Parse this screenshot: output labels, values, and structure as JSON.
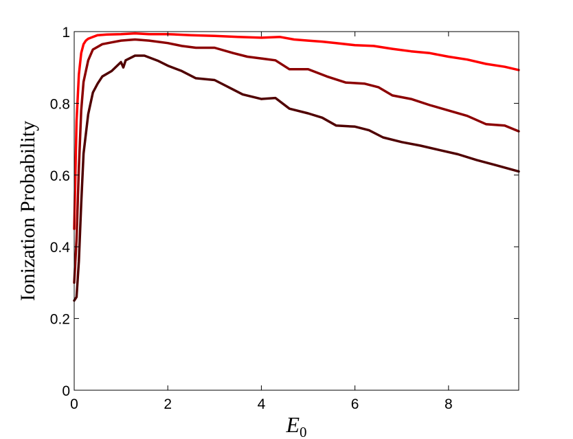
{
  "chart_data": {
    "type": "line",
    "title": "",
    "xlabel": "E",
    "xlabel_subscript": "0",
    "ylabel": "Ionization Probability",
    "xlim": [
      0,
      9.5
    ],
    "ylim": [
      0,
      1
    ],
    "xticks": [
      0,
      2,
      4,
      6,
      8
    ],
    "xtick_labels": [
      "0",
      "2",
      "4",
      "6",
      "8"
    ],
    "yticks": [
      0,
      0.2,
      0.4,
      0.6,
      0.8,
      1
    ],
    "ytick_labels": [
      "0",
      "0.2",
      "0.4",
      "0.6",
      "0.8",
      "1"
    ],
    "grid": false,
    "legend": "none",
    "series": [
      {
        "color": "#ff0000",
        "x": [
          0.0,
          0.05,
          0.1,
          0.15,
          0.2,
          0.25,
          0.3,
          0.4,
          0.5,
          0.7,
          1.0,
          1.3,
          1.6,
          2.0,
          2.5,
          3.0,
          3.5,
          4.0,
          4.4,
          4.7,
          5.0,
          5.3,
          5.6,
          6.0,
          6.4,
          6.8,
          7.2,
          7.6,
          8.0,
          8.4,
          8.8,
          9.2,
          9.5
        ],
        "y": [
          0.45,
          0.75,
          0.88,
          0.94,
          0.965,
          0.975,
          0.98,
          0.985,
          0.99,
          0.992,
          0.993,
          0.995,
          0.993,
          0.993,
          0.99,
          0.988,
          0.985,
          0.983,
          0.985,
          0.978,
          0.975,
          0.972,
          0.968,
          0.962,
          0.96,
          0.952,
          0.945,
          0.94,
          0.93,
          0.922,
          0.91,
          0.902,
          0.893
        ]
      },
      {
        "color": "#8c0000",
        "x": [
          0.0,
          0.05,
          0.1,
          0.15,
          0.2,
          0.3,
          0.4,
          0.6,
          0.8,
          1.0,
          1.3,
          1.6,
          2.0,
          2.3,
          2.6,
          3.0,
          3.4,
          3.7,
          4.0,
          4.3,
          4.6,
          5.0,
          5.4,
          5.8,
          6.2,
          6.5,
          6.8,
          7.2,
          7.6,
          8.0,
          8.4,
          8.8,
          9.2,
          9.5
        ],
        "y": [
          0.3,
          0.42,
          0.62,
          0.78,
          0.86,
          0.92,
          0.95,
          0.965,
          0.97,
          0.975,
          0.978,
          0.975,
          0.968,
          0.96,
          0.955,
          0.955,
          0.94,
          0.93,
          0.925,
          0.92,
          0.895,
          0.895,
          0.875,
          0.858,
          0.855,
          0.845,
          0.822,
          0.812,
          0.795,
          0.78,
          0.765,
          0.742,
          0.738,
          0.722
        ]
      },
      {
        "color": "#500000",
        "x": [
          0.0,
          0.05,
          0.1,
          0.15,
          0.2,
          0.3,
          0.4,
          0.5,
          0.6,
          0.8,
          1.0,
          1.05,
          1.1,
          1.3,
          1.5,
          1.8,
          2.0,
          2.3,
          2.6,
          3.0,
          3.3,
          3.6,
          4.0,
          4.3,
          4.6,
          5.0,
          5.3,
          5.6,
          6.0,
          6.3,
          6.6,
          7.0,
          7.4,
          7.8,
          8.2,
          8.6,
          9.0,
          9.5
        ],
        "y": [
          0.25,
          0.26,
          0.36,
          0.52,
          0.66,
          0.77,
          0.83,
          0.855,
          0.875,
          0.89,
          0.915,
          0.9,
          0.92,
          0.933,
          0.933,
          0.918,
          0.905,
          0.89,
          0.87,
          0.865,
          0.845,
          0.825,
          0.812,
          0.815,
          0.785,
          0.772,
          0.76,
          0.738,
          0.735,
          0.725,
          0.705,
          0.692,
          0.682,
          0.67,
          0.658,
          0.642,
          0.628,
          0.61
        ]
      }
    ]
  }
}
